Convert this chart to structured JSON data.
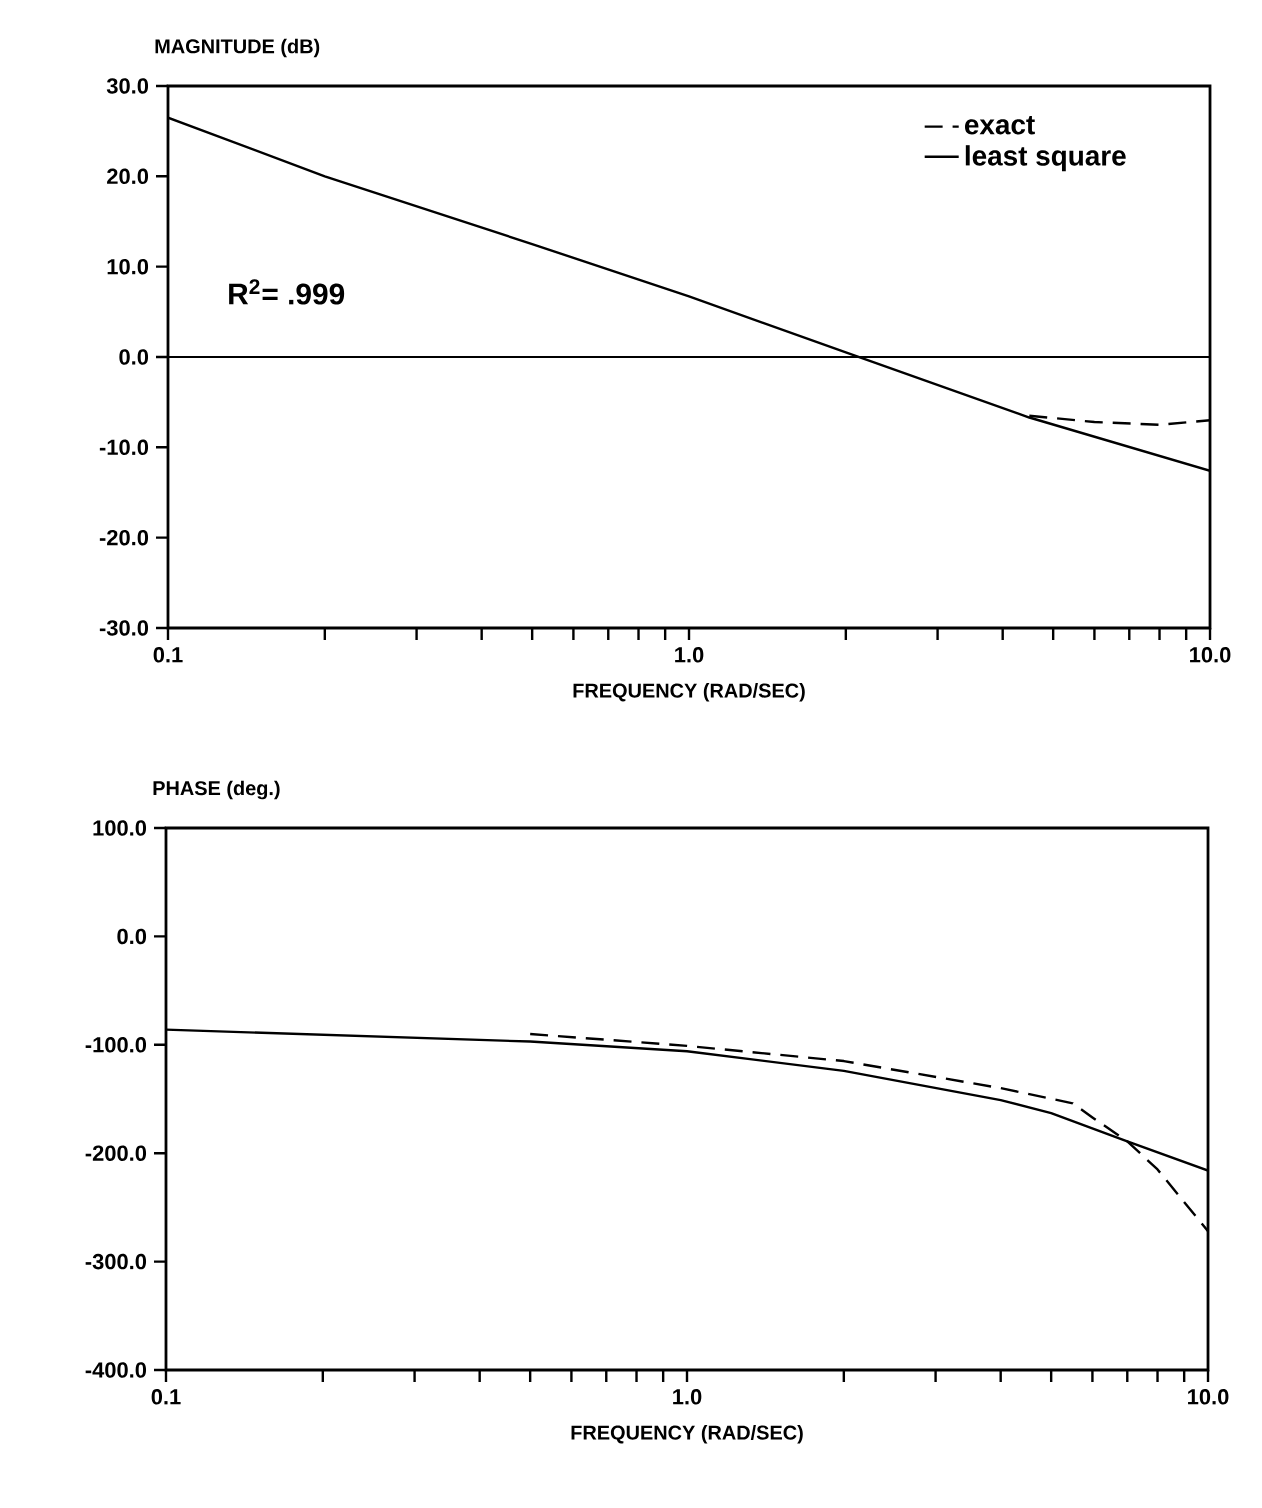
{
  "chart_data": [
    {
      "type": "line",
      "ylabel": "MAGNITUDE (dB)",
      "xlabel": "FREQUENCY (RAD/SEC)",
      "log": "x",
      "legend": "top right",
      "xlim": [
        0.1,
        10
      ],
      "ylim": [
        -30,
        30
      ],
      "xticks": [
        0.1,
        {
          "value": 0.2,
          "label": null
        },
        {
          "value": 0.3,
          "label": null
        },
        {
          "value": 0.4,
          "label": null
        },
        {
          "value": 0.5,
          "label": null
        },
        {
          "value": 0.6,
          "label": null
        },
        {
          "value": 0.7,
          "label": null
        },
        {
          "value": 0.8,
          "label": null
        },
        {
          "value": 0.9,
          "label": null
        },
        {
          "value": 1,
          "label": "1.0"
        },
        {
          "value": 2,
          "label": null
        },
        {
          "value": 3,
          "label": null
        },
        {
          "value": 4,
          "label": null
        },
        {
          "value": 5,
          "label": null
        },
        {
          "value": 6,
          "label": null
        },
        {
          "value": 7,
          "label": null
        },
        {
          "value": 8,
          "label": null
        },
        {
          "value": 9,
          "label": null
        },
        {
          "value": 10,
          "label": "10.0"
        }
      ],
      "yticks": [
        {
          "value": -30,
          "label": "-30.0"
        },
        {
          "value": -20,
          "label": "-20.0"
        },
        {
          "value": -10,
          "label": "-10.0"
        },
        {
          "value": 0,
          "label": "0.0"
        },
        {
          "value": 10,
          "label": "10.0"
        },
        {
          "value": 20,
          "label": "20.0"
        },
        {
          "value": 30,
          "label": "30.0"
        }
      ],
      "ref_lines": [
        {
          "axis": "y",
          "value": 0
        }
      ],
      "annotations": [
        "R$^{2}$= .999"
      ],
      "series": [
        {
          "name": "exact",
          "color": "#000000",
          "line_style": "dashed",
          "x": [
            4.5,
            6,
            8,
            10
          ],
          "values": [
            -6.5,
            -7.2,
            -7.5,
            -7.0
          ]
        },
        {
          "name": "least square",
          "color": "#000000",
          "line_style": "solid",
          "x": [
            0.1,
            0.2,
            0.5,
            1,
            2,
            4.5,
            10
          ],
          "values": [
            26.5,
            20,
            12.5,
            6.7,
            0.5,
            -6.7,
            -12.6
          ]
        }
      ]
    },
    {
      "type": "line",
      "ylabel": "PHASE (deg.)",
      "xlabel": "FREQUENCY (RAD/SEC)",
      "log": "x",
      "xlim": [
        0.1,
        10
      ],
      "ylim": [
        -400,
        100
      ],
      "xticks": [
        0.1,
        {
          "value": 0.2,
          "label": null
        },
        {
          "value": 0.3,
          "label": null
        },
        {
          "value": 0.4,
          "label": null
        },
        {
          "value": 0.5,
          "label": null
        },
        {
          "value": 0.6,
          "label": null
        },
        {
          "value": 0.7,
          "label": null
        },
        {
          "value": 0.8,
          "label": null
        },
        {
          "value": 0.9,
          "label": null
        },
        {
          "value": 1,
          "label": "1.0"
        },
        {
          "value": 2,
          "label": null
        },
        {
          "value": 3,
          "label": null
        },
        {
          "value": 4,
          "label": null
        },
        {
          "value": 5,
          "label": null
        },
        {
          "value": 6,
          "label": null
        },
        {
          "value": 7,
          "label": null
        },
        {
          "value": 8,
          "label": null
        },
        {
          "value": 9,
          "label": null
        },
        {
          "value": 10,
          "label": "10.0"
        }
      ],
      "yticks": [
        {
          "value": -400,
          "label": "-400.0"
        },
        {
          "value": -300,
          "label": "-300.0"
        },
        {
          "value": -200,
          "label": "-200.0"
        },
        {
          "value": -100,
          "label": "-100.0"
        },
        {
          "value": 0,
          "label": "0.0"
        },
        {
          "value": 100,
          "label": "100.0"
        }
      ],
      "series": [
        {
          "color": "#000000",
          "line_style": "dashed",
          "x": [
            0.5,
            1,
            2,
            4,
            5.5,
            6,
            7,
            8,
            10
          ],
          "values": [
            -90,
            -101,
            -115,
            -140,
            -154,
            -167,
            -189,
            -215,
            -272
          ]
        },
        {
          "color": "#000000",
          "line_style": "solid",
          "x": [
            0.1,
            0.5,
            1,
            2,
            4,
            5,
            7,
            10
          ],
          "values": [
            -86,
            -97,
            -106,
            -124,
            -151,
            -163,
            -189,
            -216
          ]
        }
      ]
    }
  ]
}
